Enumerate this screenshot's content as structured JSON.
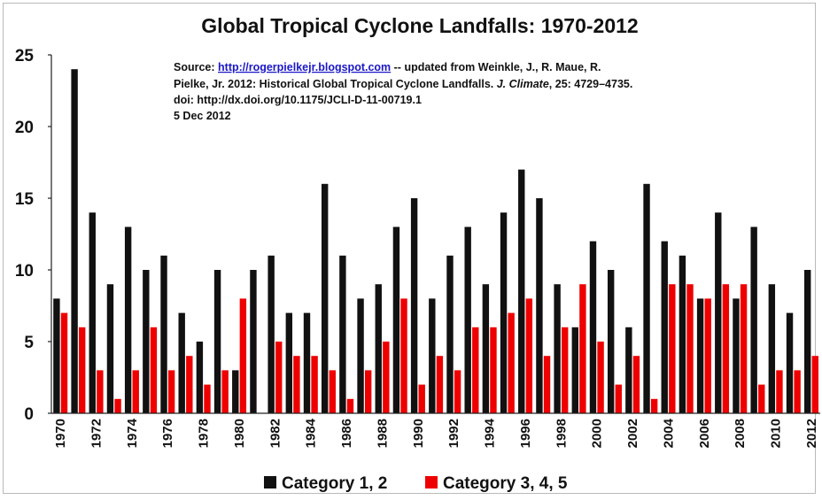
{
  "chart_data": {
    "type": "bar",
    "title": "Global Tropical Cyclone Landfalls: 1970-2012",
    "xlabel": "",
    "ylabel": "",
    "ylim": [
      0,
      25
    ],
    "yticks": [
      0,
      5,
      10,
      15,
      20,
      25
    ],
    "grid": false,
    "legend_position": "bottom",
    "x_tick_labels": [
      "1970",
      "1972",
      "1974",
      "1976",
      "1978",
      "1980",
      "1982",
      "1984",
      "1986",
      "1988",
      "1990",
      "1992",
      "1994",
      "1996",
      "1998",
      "2000",
      "2002",
      "2004",
      "2006",
      "2008",
      "2010",
      "2012"
    ],
    "categories": [
      "1970",
      "1971",
      "1972",
      "1973",
      "1974",
      "1975",
      "1976",
      "1977",
      "1978",
      "1979",
      "1980",
      "1981",
      "1982",
      "1983",
      "1984",
      "1985",
      "1986",
      "1987",
      "1988",
      "1989",
      "1990",
      "1991",
      "1992",
      "1993",
      "1994",
      "1995",
      "1996",
      "1997",
      "1998",
      "1999",
      "2000",
      "2001",
      "2002",
      "2003",
      "2004",
      "2005",
      "2006",
      "2007",
      "2008",
      "2009",
      "2010",
      "2011",
      "2012"
    ],
    "series": [
      {
        "name": "Category 1, 2",
        "color": "#111111",
        "values": [
          8,
          24,
          14,
          9,
          13,
          10,
          11,
          7,
          5,
          10,
          3,
          10,
          11,
          7,
          7,
          16,
          11,
          8,
          9,
          13,
          15,
          8,
          11,
          13,
          9,
          14,
          17,
          15,
          9,
          6,
          12,
          10,
          6,
          16,
          12,
          11,
          8,
          14,
          8,
          13,
          9,
          7,
          10
        ]
      },
      {
        "name": "Category 3, 4, 5",
        "color": "#ee0000",
        "values": [
          7,
          6,
          3,
          1,
          3,
          6,
          3,
          4,
          2,
          3,
          8,
          0,
          5,
          4,
          4,
          3,
          1,
          3,
          5,
          8,
          2,
          4,
          3,
          6,
          6,
          7,
          8,
          4,
          6,
          9,
          5,
          2,
          4,
          1,
          9,
          9,
          8,
          9,
          9,
          2,
          3,
          3,
          4
        ]
      }
    ],
    "annotation": {
      "line1_prefix": "Source: ",
      "line1_link": "http://rogerpielkejr.blogspot.com",
      "line1_suffix": " -- updated from Weinkle, J., R. Maue, R.",
      "line2_prefix": "Pielke, Jr. 2012: Historical Global Tropical Cyclone Landfalls. ",
      "line2_italic": "J. Climate",
      "line2_suffix": ", 25: 4729–4735.",
      "line3": "doi: http://dx.doi.org/10.1175/JCLI-D-11-00719.1",
      "line4": "5 Dec 2012"
    }
  }
}
